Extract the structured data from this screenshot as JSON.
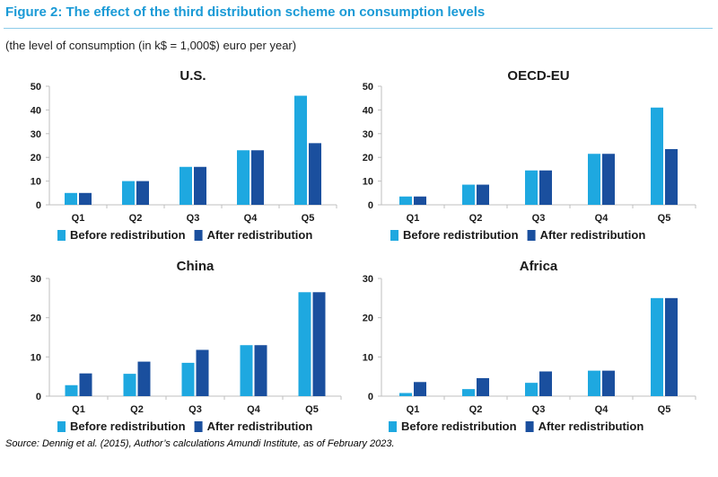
{
  "figure": {
    "title": "Figure 2: The effect of the third distribution scheme on consumption levels",
    "subtitle": "(the level of consumption (in k$ = 1,000$) euro per year)",
    "source": "Source: Dennig et al. (2015), Author’s calculations Amundi Institute, as of February 2023."
  },
  "colors": {
    "before": "#1ea8e0",
    "after": "#1a4f9e",
    "axis": "#bfbfbf"
  },
  "chart_data": [
    {
      "type": "bar",
      "title": "U.S.",
      "categories": [
        "Q1",
        "Q2",
        "Q3",
        "Q4",
        "Q5"
      ],
      "series": [
        {
          "name": "Before redistribution",
          "values": [
            5,
            10,
            16,
            23,
            46
          ]
        },
        {
          "name": "After redistribution",
          "values": [
            5,
            10,
            16,
            23,
            26
          ]
        }
      ],
      "ylim": [
        0,
        50
      ],
      "yticks": [
        0,
        10,
        20,
        30,
        40,
        50
      ],
      "legend": "bottom"
    },
    {
      "type": "bar",
      "title": "OECD-EU",
      "categories": [
        "Q1",
        "Q2",
        "Q3",
        "Q4",
        "Q5"
      ],
      "series": [
        {
          "name": "Before redistribution",
          "values": [
            3.5,
            8.5,
            14.5,
            21.5,
            41
          ]
        },
        {
          "name": "After redistribution",
          "values": [
            3.5,
            8.5,
            14.5,
            21.5,
            23.5
          ]
        }
      ],
      "ylim": [
        0,
        50
      ],
      "yticks": [
        0,
        10,
        20,
        30,
        40,
        50
      ],
      "legend": "bottom"
    },
    {
      "type": "bar",
      "title": "China",
      "categories": [
        "Q1",
        "Q2",
        "Q3",
        "Q4",
        "Q5"
      ],
      "series": [
        {
          "name": "Before redistribution",
          "values": [
            2.8,
            5.7,
            8.5,
            13,
            26.5
          ]
        },
        {
          "name": "After redistribution",
          "values": [
            5.8,
            8.8,
            11.8,
            13,
            26.5
          ]
        }
      ],
      "ylim": [
        0,
        30
      ],
      "yticks": [
        0,
        10,
        20,
        30
      ],
      "legend": "bottom"
    },
    {
      "type": "bar",
      "title": "Africa",
      "categories": [
        "Q1",
        "Q2",
        "Q3",
        "Q4",
        "Q5"
      ],
      "series": [
        {
          "name": "Before redistribution",
          "values": [
            0.8,
            1.8,
            3.4,
            6.5,
            25
          ]
        },
        {
          "name": "After redistribution",
          "values": [
            3.6,
            4.6,
            6.3,
            6.5,
            25
          ]
        }
      ],
      "ylim": [
        0,
        30
      ],
      "yticks": [
        0,
        10,
        20,
        30
      ],
      "legend": "bottom"
    }
  ]
}
